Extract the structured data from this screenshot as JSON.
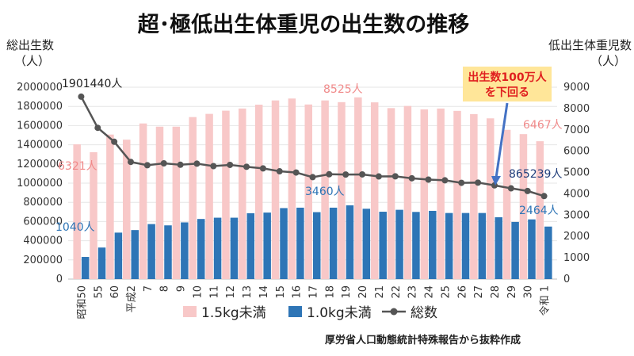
{
  "chart_data": {
    "type": "bar",
    "title": "超･極低出生体重児の出生数の推移",
    "y1_label": "総出生数",
    "y1_unit": "（人）",
    "y2_label": "低出生体重児数",
    "y2_unit": "（人）",
    "y1_range": [
      0,
      2000000
    ],
    "y1_ticks": [
      0,
      200000,
      400000,
      600000,
      800000,
      1000000,
      1200000,
      1400000,
      1600000,
      1800000,
      2000000
    ],
    "y2_range": [
      0,
      9000
    ],
    "y2_ticks": [
      0,
      1000,
      2000,
      3000,
      4000,
      5000,
      6000,
      7000,
      8000,
      9000
    ],
    "categories": [
      "昭和50",
      "55",
      "60",
      "平成2",
      "7",
      "8",
      "9",
      "10",
      "11",
      "12",
      "13",
      "14",
      "15",
      "16",
      "17",
      "18",
      "19",
      "20",
      "21",
      "22",
      "23",
      "24",
      "25",
      "26",
      "27",
      "28",
      "29",
      "30",
      "令和 1"
    ],
    "series": [
      {
        "name": "1.5kg未満",
        "axis": "right",
        "type": "bar",
        "color": "#f8c8c8",
        "values": [
          6321,
          5950,
          6780,
          6540,
          7300,
          7150,
          7150,
          7600,
          7750,
          7900,
          8000,
          8180,
          8380,
          8470,
          8190,
          8380,
          8300,
          8525,
          8290,
          8020,
          8120,
          7960,
          8000,
          7890,
          7740,
          7540,
          7000,
          6800,
          6467
        ]
      },
      {
        "name": "1.0kg未満",
        "axis": "right",
        "type": "bar",
        "color": "#2e75b6",
        "values": [
          1040,
          1480,
          2180,
          2300,
          2580,
          2520,
          2660,
          2820,
          2880,
          2880,
          3090,
          3120,
          3330,
          3350,
          3140,
          3350,
          3460,
          3300,
          3160,
          3250,
          3150,
          3200,
          3100,
          3100,
          3100,
          2900,
          2680,
          2800,
          2464
        ]
      },
      {
        "name": "総数",
        "axis": "left",
        "type": "line",
        "color": "#555555",
        "values": [
          1901440,
          1576889,
          1431577,
          1221585,
          1187064,
          1206555,
          1191665,
          1203147,
          1177669,
          1190547,
          1170662,
          1153855,
          1123610,
          1110721,
          1062530,
          1092674,
          1089818,
          1091156,
          1070035,
          1071304,
          1050806,
          1037231,
          1029816,
          1003539,
          1005677,
          976978,
          946065,
          918400,
          865239
        ]
      }
    ],
    "annotations": {
      "total_first": "1901440人",
      "total_last": "865239人",
      "v15_first": "6321人",
      "v15_peak": "8525人",
      "v15_last": "6467人",
      "v10_first": "1040人",
      "v10_peak": "3460人",
      "v10_last": "2464人",
      "callout_line1": "出生数100万人",
      "callout_line2": "を下回る"
    },
    "legend": {
      "position": "bottom",
      "items": [
        "1.5kg未満",
        "1.0kg未満",
        "総数"
      ]
    },
    "source": "厚労省人口動態統計特殊報告から抜粋作成"
  }
}
